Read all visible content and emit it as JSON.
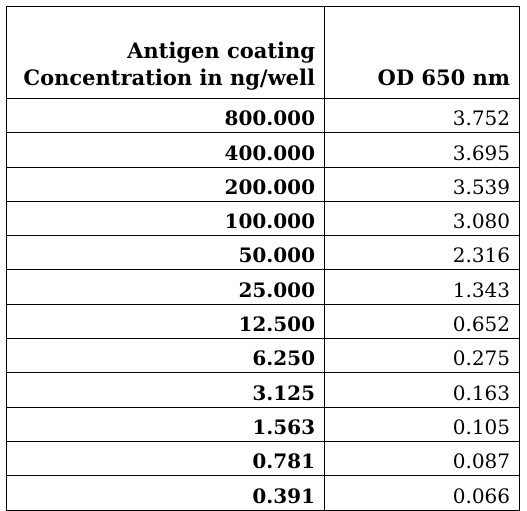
{
  "table": {
    "header": {
      "col1_line1": "Antigen coating",
      "col1_line2": "Concentration in ng/well",
      "col2": "OD 650 nm"
    },
    "rows": [
      {
        "concentration": "800.000",
        "od": "3.752"
      },
      {
        "concentration": "400.000",
        "od": "3.695"
      },
      {
        "concentration": "200.000",
        "od": "3.539"
      },
      {
        "concentration": "100.000",
        "od": "3.080"
      },
      {
        "concentration": "50.000",
        "od": "2.316"
      },
      {
        "concentration": "25.000",
        "od": "1.343"
      },
      {
        "concentration": "12.500",
        "od": "0.652"
      },
      {
        "concentration": "6.250",
        "od": "0.275"
      },
      {
        "concentration": "3.125",
        "od": "0.163"
      },
      {
        "concentration": "1.563",
        "od": "0.105"
      },
      {
        "concentration": "0.781",
        "od": "0.087"
      },
      {
        "concentration": "0.391",
        "od": "0.066"
      }
    ]
  }
}
